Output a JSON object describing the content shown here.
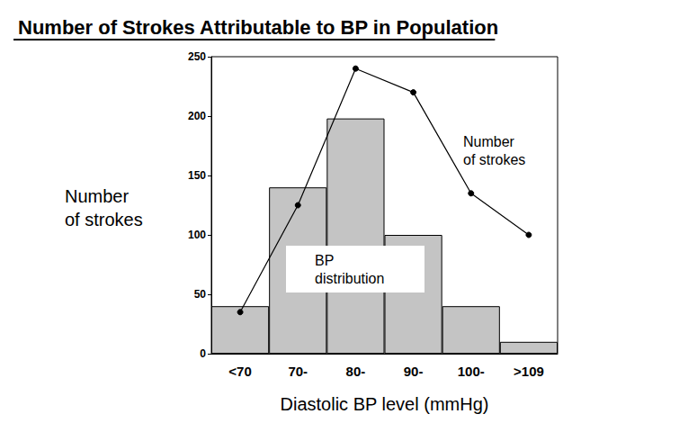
{
  "chart_data": {
    "type": "bar",
    "title": "Number of Strokes Attributable to BP in Population",
    "x_label": "Diastolic BP level (mmHg)",
    "y_label": "Number of strokes",
    "categories": [
      "<70",
      "70-",
      "80-",
      "90-",
      "100-",
      ">109"
    ],
    "series": [
      {
        "name": "BP distribution",
        "type": "bar",
        "color": "#c4c4c4",
        "values": [
          40,
          140,
          198,
          100,
          40,
          10
        ]
      },
      {
        "name": "Number of strokes",
        "type": "line",
        "color": "#000000",
        "marker": "circle",
        "values": [
          35,
          125,
          240,
          220,
          135,
          100
        ]
      }
    ],
    "ylim": [
      0,
      250
    ],
    "yticks": [
      0,
      50,
      100,
      150,
      200,
      250
    ],
    "grid": false
  }
}
